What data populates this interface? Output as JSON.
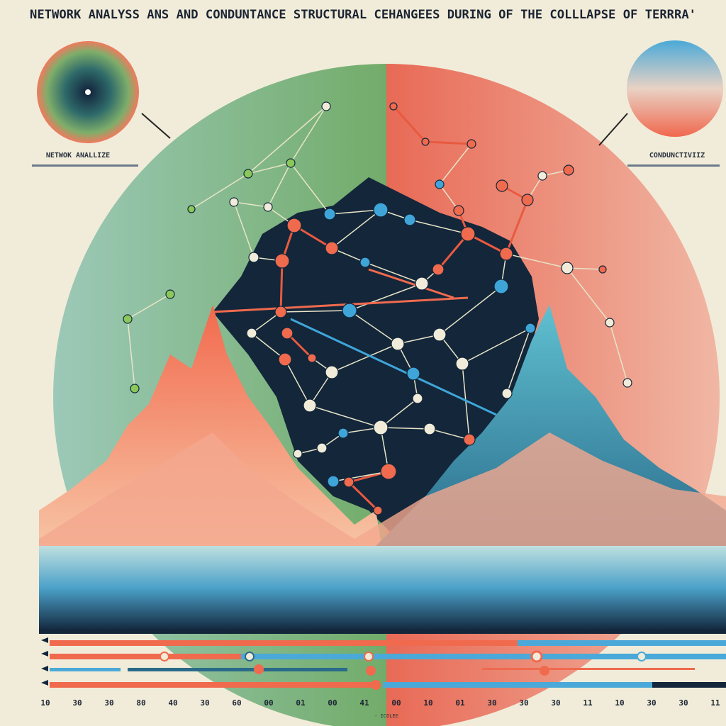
{
  "header": {
    "title": "NETWORK ANALYSS ANS AND CONDUNTANCE STRUCTURAL CEHANGEES DURING OF THE COLLLAPSE OF TERRRA'"
  },
  "left_panel": {
    "label": "NETWOK ANALLIZE"
  },
  "right_panel": {
    "label": "CONDUNCTIVIIZ"
  },
  "timeline": {
    "ticks": [
      "10",
      "30",
      "30",
      "80",
      "40",
      "30",
      "60",
      "00",
      "01",
      "00",
      "41",
      "00",
      "10",
      "01",
      "30",
      "30",
      "30",
      "11",
      "10",
      "30",
      "30",
      "11"
    ],
    "caption": "- ICOLEE"
  }
}
